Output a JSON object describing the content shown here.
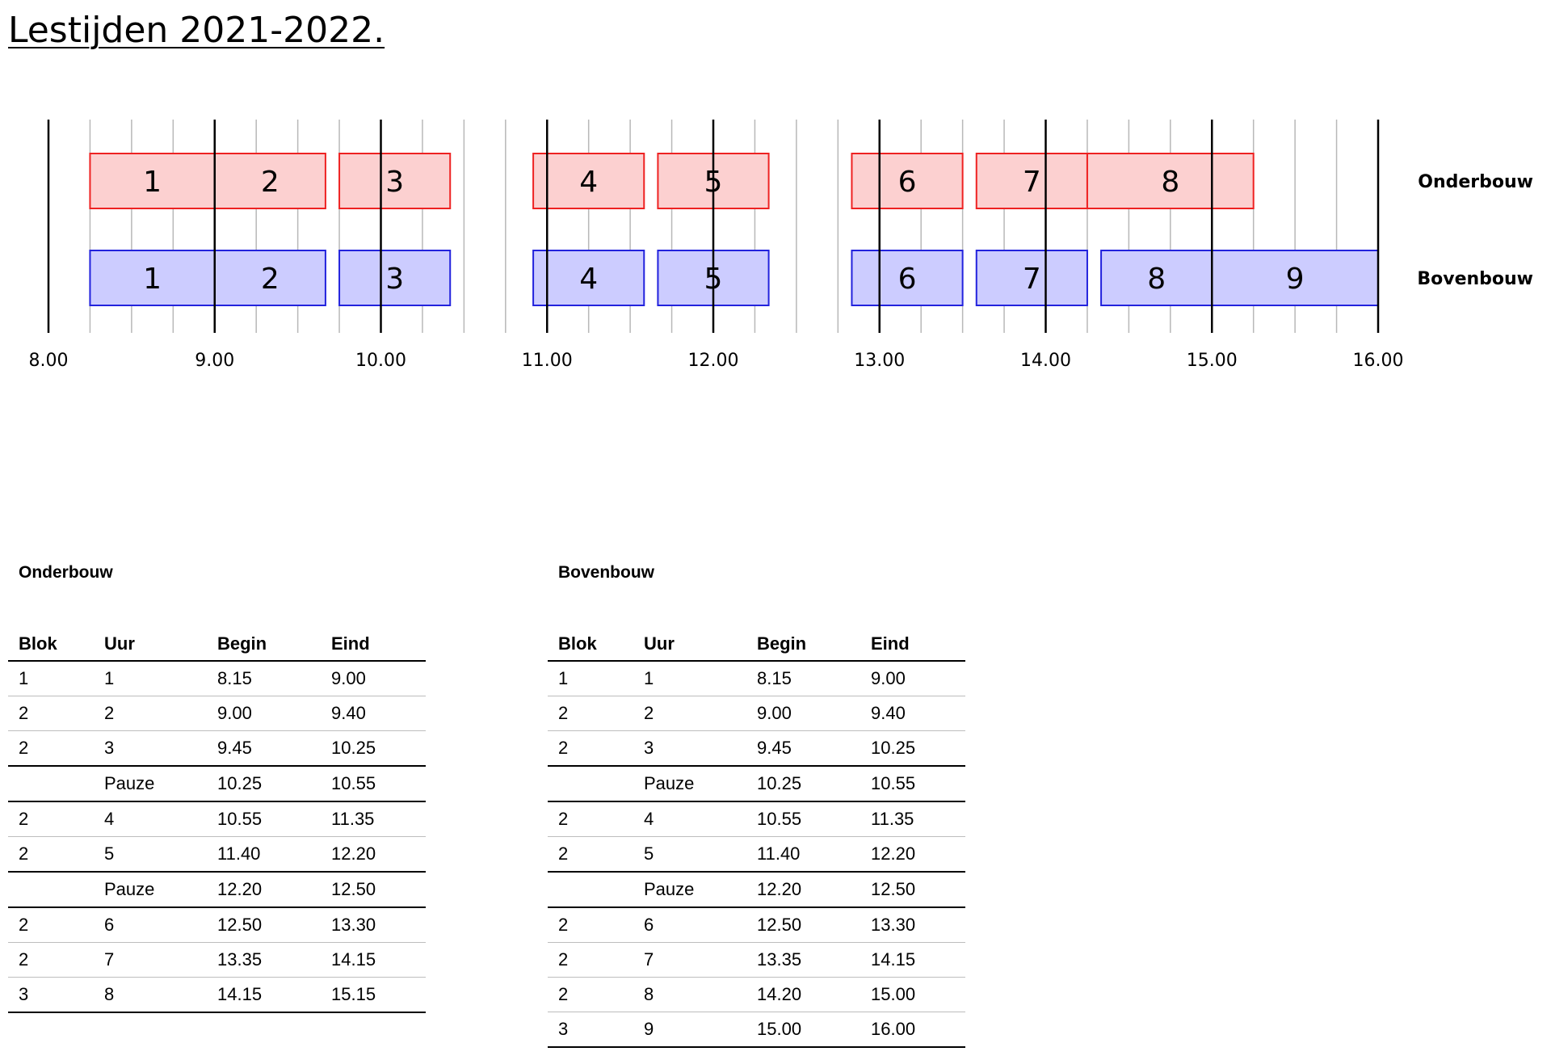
{
  "title": "Lestijden 2021-2022.",
  "chart_data": {
    "type": "gantt",
    "x_range": [
      "8.00",
      "16.00"
    ],
    "x_unit": "hour",
    "x_ticks": [
      "8.00",
      "9.00",
      "10.00",
      "11.00",
      "12.00",
      "13.00",
      "14.00",
      "15.00",
      "16.00"
    ],
    "minor_grid_minutes": 15,
    "series": [
      {
        "name": "Onderbouw",
        "color": "#ee2222",
        "fill": "#fcd0d0",
        "bars": [
          {
            "label": "1",
            "start": "8.15",
            "end": "9.00"
          },
          {
            "label": "2",
            "start": "9.00",
            "end": "9.40"
          },
          {
            "label": "3",
            "start": "9.45",
            "end": "10.25"
          },
          {
            "label": "4",
            "start": "10.55",
            "end": "11.35"
          },
          {
            "label": "5",
            "start": "11.40",
            "end": "12.20"
          },
          {
            "label": "6",
            "start": "12.50",
            "end": "13.30"
          },
          {
            "label": "7",
            "start": "13.35",
            "end": "14.15"
          },
          {
            "label": "8",
            "start": "14.15",
            "end": "15.15"
          }
        ]
      },
      {
        "name": "Bovenbouw",
        "color": "#2222dd",
        "fill": "#ccccff",
        "bars": [
          {
            "label": "1",
            "start": "8.15",
            "end": "9.00"
          },
          {
            "label": "2",
            "start": "9.00",
            "end": "9.40"
          },
          {
            "label": "3",
            "start": "9.45",
            "end": "10.25"
          },
          {
            "label": "4",
            "start": "10.55",
            "end": "11.35"
          },
          {
            "label": "5",
            "start": "11.40",
            "end": "12.20"
          },
          {
            "label": "6",
            "start": "12.50",
            "end": "13.30"
          },
          {
            "label": "7",
            "start": "13.35",
            "end": "14.15"
          },
          {
            "label": "8",
            "start": "14.20",
            "end": "15.00"
          },
          {
            "label": "9",
            "start": "15.00",
            "end": "16.00"
          }
        ]
      }
    ]
  },
  "tables": [
    {
      "heading": "Onderbouw",
      "columns": [
        "Blok",
        "Uur",
        "Begin",
        "Eind"
      ],
      "rows": [
        [
          "1",
          "1",
          "8.15",
          "9.00"
        ],
        [
          "2",
          "2",
          "9.00",
          "9.40"
        ],
        [
          "2",
          "3",
          "9.45",
          "10.25"
        ],
        [
          "",
          "Pauze",
          "10.25",
          "10.55"
        ],
        [
          "2",
          "4",
          "10.55",
          "11.35"
        ],
        [
          "2",
          "5",
          "11.40",
          "12.20"
        ],
        [
          "",
          "Pauze",
          "12.20",
          "12.50"
        ],
        [
          "2",
          "6",
          "12.50",
          "13.30"
        ],
        [
          "2",
          "7",
          "13.35",
          "14.15"
        ],
        [
          "3",
          "8",
          "14.15",
          "15.15"
        ]
      ]
    },
    {
      "heading": "Bovenbouw",
      "columns": [
        "Blok",
        "Uur",
        "Begin",
        "Eind"
      ],
      "rows": [
        [
          "1",
          "1",
          "8.15",
          "9.00"
        ],
        [
          "2",
          "2",
          "9.00",
          "9.40"
        ],
        [
          "2",
          "3",
          "9.45",
          "10.25"
        ],
        [
          "",
          "Pauze",
          "10.25",
          "10.55"
        ],
        [
          "2",
          "4",
          "10.55",
          "11.35"
        ],
        [
          "2",
          "5",
          "11.40",
          "12.20"
        ],
        [
          "",
          "Pauze",
          "12.20",
          "12.50"
        ],
        [
          "2",
          "6",
          "12.50",
          "13.30"
        ],
        [
          "2",
          "7",
          "13.35",
          "14.15"
        ],
        [
          "2",
          "8",
          "14.20",
          "15.00"
        ],
        [
          "3",
          "9",
          "15.00",
          "16.00"
        ]
      ]
    }
  ]
}
